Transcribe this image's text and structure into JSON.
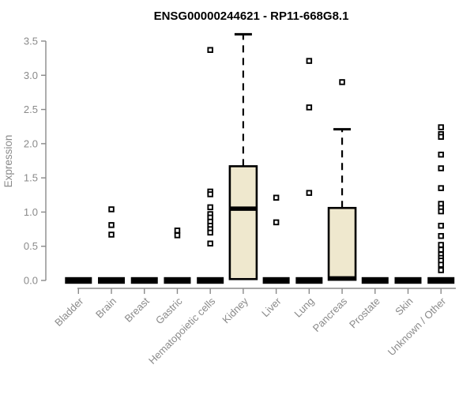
{
  "title": "ENSG00000244621 - RP11-668G8.1",
  "colors": {
    "background": "#ffffff",
    "axis": "#8a8a8a",
    "tick_label": "#8a8a8a",
    "title": "#000000",
    "box_fill": "#efe8ce",
    "box_stroke": "#000000",
    "outlier_fill": "#ffffff",
    "outlier_stroke": "#000000"
  },
  "chart_data": {
    "type": "boxplot",
    "title": "ENSG00000244621 - RP11-668G8.1",
    "xlabel": "",
    "ylabel": "Expression",
    "ylim": [
      0.0,
      3.5
    ],
    "grid": false,
    "legend": "none",
    "yticks": {
      "values": [
        0.0,
        0.5,
        1.0,
        1.5,
        2.0,
        2.5,
        3.0,
        3.5
      ],
      "labels": [
        "0.0",
        "0.5",
        "1.0",
        "1.5",
        "2.0",
        "2.5",
        "3.0",
        "3.5"
      ]
    },
    "categories": [
      "Bladder",
      "Brain",
      "Breast",
      "Gastric",
      "Hematopoietic cells",
      "Kidney",
      "Liver",
      "Lung",
      "Pancreas",
      "Prostate",
      "Skin",
      "Unknown / Other"
    ],
    "boxes": [
      {
        "category": "Bladder",
        "q1": 0,
        "median": 0,
        "q3": 0,
        "whisker_low": 0,
        "whisker_high": 0,
        "collapsed": true,
        "outliers": []
      },
      {
        "category": "Brain",
        "q1": 0,
        "median": 0,
        "q3": 0,
        "whisker_low": 0,
        "whisker_high": 0,
        "collapsed": true,
        "outliers": [
          1.04,
          0.81,
          0.67
        ]
      },
      {
        "category": "Breast",
        "q1": 0,
        "median": 0,
        "q3": 0,
        "whisker_low": 0,
        "whisker_high": 0,
        "collapsed": true,
        "outliers": []
      },
      {
        "category": "Gastric",
        "q1": 0,
        "median": 0,
        "q3": 0,
        "whisker_low": 0,
        "whisker_high": 0,
        "collapsed": true,
        "outliers": [
          0.73,
          0.66
        ]
      },
      {
        "category": "Hematopoietic cells",
        "q1": 0,
        "median": 0,
        "q3": 0,
        "whisker_low": 0,
        "whisker_high": 0,
        "collapsed": true,
        "outliers": [
          3.37,
          1.3,
          1.26,
          1.07,
          0.97,
          0.92,
          0.86,
          0.8,
          0.75,
          0.7,
          0.54
        ]
      },
      {
        "category": "Kidney",
        "q1": 0.02,
        "median": 1.05,
        "q3": 1.67,
        "whisker_low": 0.02,
        "whisker_high": 3.6,
        "collapsed": false,
        "outliers": []
      },
      {
        "category": "Liver",
        "q1": 0,
        "median": 0,
        "q3": 0,
        "whisker_low": 0,
        "whisker_high": 0,
        "collapsed": true,
        "outliers": [
          1.21,
          0.85
        ]
      },
      {
        "category": "Lung",
        "q1": 0,
        "median": 0,
        "q3": 0,
        "whisker_low": 0,
        "whisker_high": 0,
        "collapsed": true,
        "outliers": [
          3.21,
          2.53,
          1.28
        ]
      },
      {
        "category": "Pancreas",
        "q1": 0.01,
        "median": 0.03,
        "q3": 1.06,
        "whisker_low": 0.01,
        "whisker_high": 2.21,
        "collapsed": false,
        "outliers": [
          2.9
        ]
      },
      {
        "category": "Prostate",
        "q1": 0,
        "median": 0,
        "q3": 0,
        "whisker_low": 0,
        "whisker_high": 0,
        "collapsed": true,
        "outliers": []
      },
      {
        "category": "Skin",
        "q1": 0,
        "median": 0,
        "q3": 0,
        "whisker_low": 0,
        "whisker_high": 0,
        "collapsed": true,
        "outliers": []
      },
      {
        "category": "Unknown / Other",
        "q1": 0,
        "median": 0,
        "q3": 0,
        "whisker_low": 0,
        "whisker_high": 0,
        "collapsed": true,
        "outliers": [
          2.24,
          2.14,
          2.1,
          1.84,
          1.64,
          1.35,
          1.12,
          1.06,
          1.01,
          0.8,
          0.65,
          0.52,
          0.45,
          0.38,
          0.33,
          0.29,
          0.23,
          0.15
        ]
      }
    ]
  }
}
